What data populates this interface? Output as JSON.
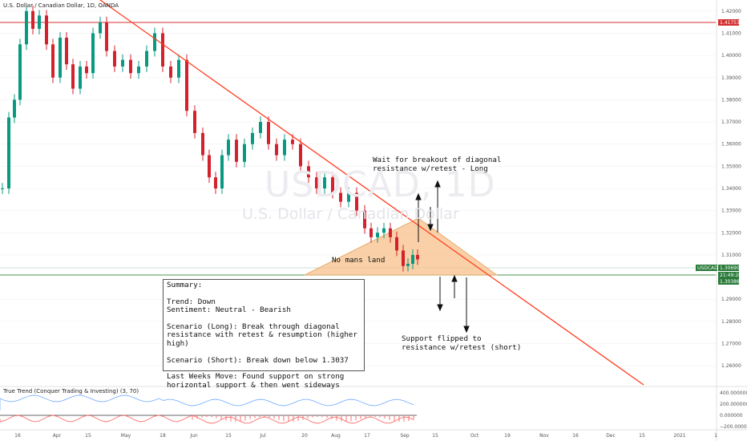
{
  "header": {
    "title": "U.S. Dollar / Canadian Dollar, 1D, OANDA",
    "watermark_symbol": "USDCAD, 1D",
    "watermark_name": "U.S. Dollar / Canadian Dollar"
  },
  "colors": {
    "up": "#089981",
    "down": "#d3222d",
    "resistance": "#ff3b1f",
    "horizontal_resistance": "#d32f2f",
    "support": "#4c9a4c",
    "zone_fill": "#f7c08a",
    "oscillator_blue": "#7fb3ff",
    "oscillator_red": "#ff6e6e"
  },
  "chart_data": {
    "type": "candlestick",
    "symbol": "USDCAD",
    "timeframe": "1D",
    "ylim": [
      1.255,
      1.425
    ],
    "y_ticks": [
      "1.42000",
      "1.41000",
      "1.40000",
      "1.39000",
      "1.38000",
      "1.37000",
      "1.36000",
      "1.35000",
      "1.34000",
      "1.33000",
      "1.32000",
      "1.31000",
      "1.29000",
      "1.28000",
      "1.27000",
      "1.26000"
    ],
    "x_ticks": [
      "16",
      "Apr",
      "15",
      "May",
      "18",
      "Jun",
      "15",
      "Jul",
      "20",
      "Aug",
      "17",
      "Sep",
      "15",
      "Oct",
      "19",
      "Nov",
      "16",
      "Dec",
      "15",
      "2021",
      "1"
    ],
    "price_badges": [
      {
        "label": "1.41753",
        "value": 1.41753,
        "color": "#d32f2f"
      },
      {
        "label": "USDCAD",
        "value": 1.3069,
        "color": "#2a7a3a"
      },
      {
        "label": "1.30690",
        "value": 1.3069,
        "color": "#2a7a3a"
      },
      {
        "label": "21:49:20",
        "value": 1.3052,
        "color": "#2a7a3a"
      },
      {
        "label": "1.30386",
        "value": 1.30386,
        "color": "#2a7a3a"
      }
    ],
    "horizontal_lines": [
      {
        "name": "resistance",
        "value": 1.41753
      },
      {
        "name": "support",
        "value": 1.30386
      }
    ],
    "indicator": {
      "name": "True Trend (Conquer Trading & Investing) (3, 70)",
      "y_ticks": [
        "400.000000",
        "200.000000",
        "0.000000",
        "−200.000000"
      ]
    }
  },
  "annotations": {
    "breakout": "Wait for breakout of diagonal\nresistance w/retest - Long",
    "no_mans_land": "No mans land",
    "support_flip": "Support flipped to\nresistance w/retest (short)"
  },
  "summary": {
    "heading": "Summary:",
    "trend": "Trend: Down",
    "sentiment": "Sentiment: Neutral - Bearish",
    "long": "Scenario (Long): Break through diagonal resistance with retest & resumption (higher high)",
    "short": "Scenario (Short): Break down below 1.3037",
    "last_week": "Last Weeks Move: Found support on strong horizontal support & then went sideways"
  }
}
